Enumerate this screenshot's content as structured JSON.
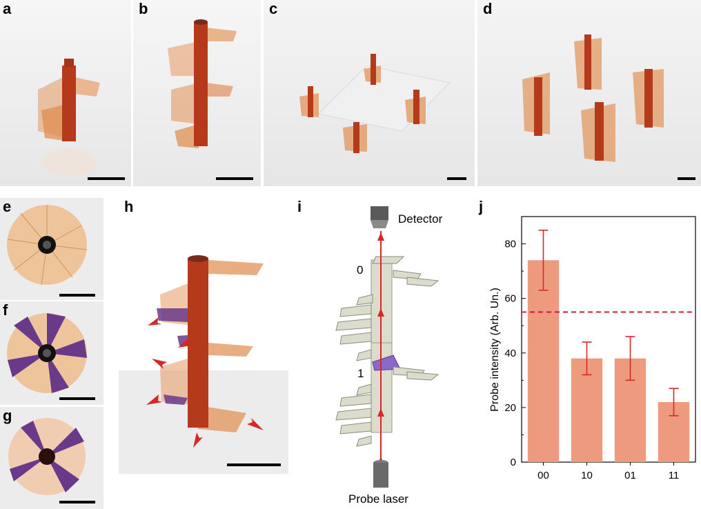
{
  "panel_labels": {
    "a": "a",
    "b": "b",
    "c": "c",
    "d": "d",
    "e": "e",
    "f": "f",
    "g": "g",
    "h": "h",
    "i": "i",
    "j": "j"
  },
  "diagram_i": {
    "detector_label": "Detector",
    "laser_label": "Probe laser",
    "level_0": "0",
    "level_1": "1"
  },
  "colors": {
    "rod": "#b53a1c",
    "fin": "#e2935a",
    "purple": "#6a3a8a",
    "bar": "#ee9a7e",
    "error": "#d62828",
    "threshold": "#c8102e"
  },
  "chart_data": {
    "type": "bar",
    "categories": [
      "00",
      "10",
      "01",
      "11"
    ],
    "values": [
      74,
      38,
      38,
      22
    ],
    "errors": [
      11,
      6,
      8,
      5
    ],
    "threshold": 55,
    "ylabel": "Probe intensity (Arb. Un.)",
    "xlabel": "",
    "ylim": [
      0,
      90
    ],
    "yticks": [
      "0",
      "20",
      "40",
      "60",
      "80"
    ],
    "grid": false
  }
}
